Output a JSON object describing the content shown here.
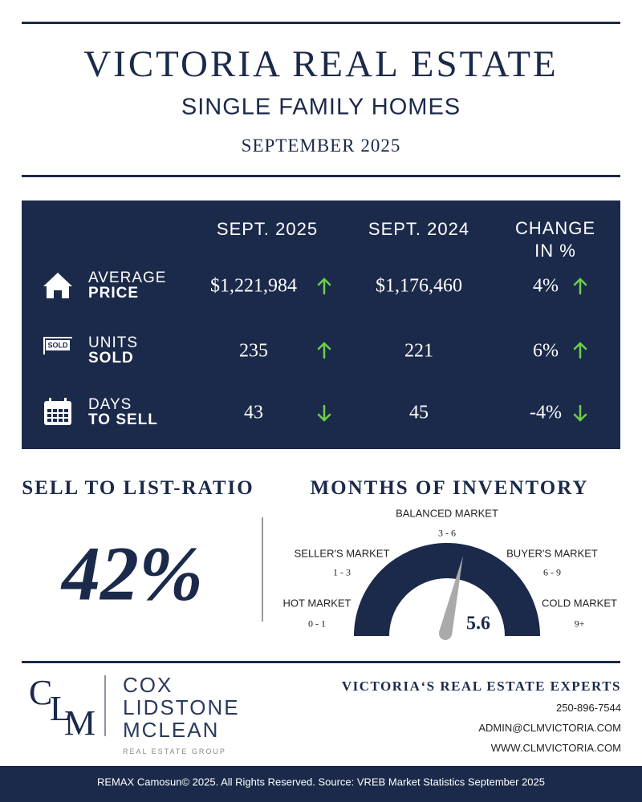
{
  "header": {
    "title": "VICTORIA REAL ESTATE",
    "subtitle": "SINGLE FAMILY HOMES",
    "date": "SEPTEMBER 2025"
  },
  "table": {
    "columns": [
      "SEPT. 2025",
      "SEPT. 2024",
      "CHANGE IN %"
    ],
    "sold_sign": "SOLD",
    "rows": [
      {
        "label_top": "AVERAGE",
        "label_bottom": "PRICE",
        "current": "$1,221,984",
        "previous": "$1,176,460",
        "change": "4%"
      },
      {
        "label_top": "UNITS",
        "label_bottom": "SOLD",
        "current": "235",
        "previous": "221",
        "change": "6%"
      },
      {
        "label_top": "DAYS",
        "label_bottom": "TO SELL",
        "current": "43",
        "previous": "45",
        "change": "-4%"
      }
    ]
  },
  "ratio": {
    "title": "SELL TO LIST-RATIO",
    "value": "42%"
  },
  "inventory": {
    "title": "MONTHS OF INVENTORY",
    "value": "5.6",
    "zones": [
      {
        "name": "HOT MARKET",
        "range": "0 - 1"
      },
      {
        "name": "SELLER'S MARKET",
        "range": "1 - 3"
      },
      {
        "name": "BALANCED MARKET",
        "range": "3 - 6"
      },
      {
        "name": "BUYER'S MARKET",
        "range": "6 - 9"
      },
      {
        "name": "COLD MARKET",
        "range": "9+"
      }
    ]
  },
  "logo": {
    "monogram": [
      "C",
      "L",
      "M"
    ],
    "name": [
      "COX",
      "LIDSTONE",
      "MCLEAN"
    ],
    "tagline": "REAL ESTATE GROUP"
  },
  "contact": {
    "heading": "VICTORIA‘S REAL ESTATE EXPERTS",
    "phone": "250-896-7544",
    "email": "ADMIN@CLMVICTORIA.COM",
    "web": "WWW.CLMVICTORIA.COM"
  },
  "footer": {
    "copyright": "REMAX Camosun© 2025. All Rights Reserved.  Source: VREB Market Statistics September 2025"
  }
}
